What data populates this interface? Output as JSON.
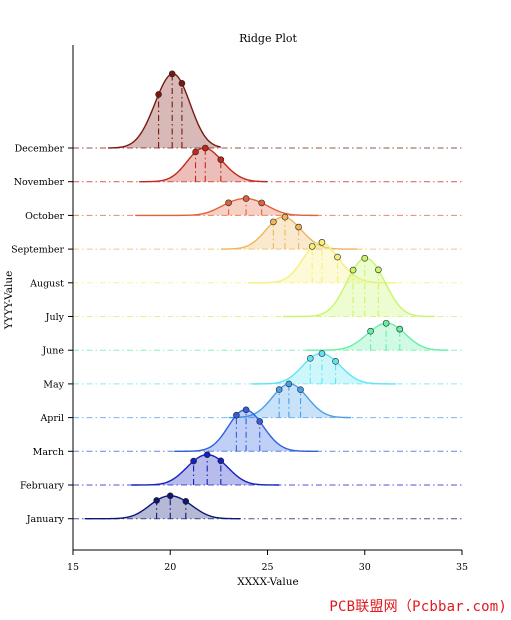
{
  "chart_data": {
    "type": "ridge",
    "title": "Ridge Plot",
    "xlabel": "XXXX-Value",
    "ylabel": "YYYY-Value",
    "xlim": [
      15,
      35
    ],
    "xticks": [
      15,
      20,
      25,
      30,
      35
    ],
    "categories": [
      "January",
      "February",
      "March",
      "April",
      "May",
      "June",
      "July",
      "August",
      "September",
      "October",
      "November",
      "December"
    ],
    "series": [
      {
        "category": "January",
        "color": "#0b1775",
        "points": [
          {
            "x": 19.3,
            "y": 0.6
          },
          {
            "x": 20.0,
            "y": 0.68
          },
          {
            "x": 20.8,
            "y": 0.6
          }
        ],
        "range": [
          15.6,
          23.6
        ]
      },
      {
        "category": "February",
        "color": "#1420c0",
        "points": [
          {
            "x": 21.2,
            "y": 0.88
          },
          {
            "x": 21.9,
            "y": 0.9
          },
          {
            "x": 22.6,
            "y": 0.9
          }
        ],
        "range": [
          18.0,
          25.6
        ]
      },
      {
        "category": "March",
        "color": "#2f5fe0",
        "points": [
          {
            "x": 23.4,
            "y": 0.95
          },
          {
            "x": 23.9,
            "y": 1.23
          },
          {
            "x": 24.6,
            "y": 0.7
          }
        ],
        "range": [
          20.2,
          27.6
        ]
      },
      {
        "category": "April",
        "color": "#4a9fea",
        "points": [
          {
            "x": 25.6,
            "y": 0.8
          },
          {
            "x": 26.1,
            "y": 1.0
          },
          {
            "x": 26.7,
            "y": 0.9
          }
        ],
        "range": [
          23.0,
          29.3
        ]
      },
      {
        "category": "May",
        "color": "#5ee4f2",
        "points": [
          {
            "x": 27.2,
            "y": 0.86
          },
          {
            "x": 27.8,
            "y": 0.9
          },
          {
            "x": 28.5,
            "y": 0.7
          }
        ],
        "range": [
          24.2,
          31.6
        ]
      },
      {
        "category": "June",
        "color": "#66f0a6",
        "points": [
          {
            "x": 30.3,
            "y": 0.45
          },
          {
            "x": 31.1,
            "y": 0.8
          },
          {
            "x": 31.8,
            "y": 0.5
          }
        ],
        "range": [
          27.0,
          34.3
        ]
      },
      {
        "category": "July",
        "color": "#c8f56a",
        "points": [
          {
            "x": 29.4,
            "y": 1.4
          },
          {
            "x": 30.0,
            "y": 1.73
          },
          {
            "x": 30.7,
            "y": 1.6
          }
        ],
        "range": [
          25.8,
          33.6
        ]
      },
      {
        "category": "August",
        "color": "#f6f07a",
        "points": [
          {
            "x": 27.3,
            "y": 1.05
          },
          {
            "x": 27.8,
            "y": 1.2
          },
          {
            "x": 28.6,
            "y": 0.6
          }
        ],
        "range": [
          24.0,
          31.6
        ]
      },
      {
        "category": "September",
        "color": "#f0b55a",
        "points": [
          {
            "x": 25.3,
            "y": 0.65
          },
          {
            "x": 25.9,
            "y": 0.95
          },
          {
            "x": 26.6,
            "y": 0.4
          }
        ],
        "range": [
          22.6,
          29.6
        ]
      },
      {
        "category": "October",
        "color": "#e0623a",
        "points": [
          {
            "x": 23.0,
            "y": 0.4
          },
          {
            "x": 23.9,
            "y": 0.5
          },
          {
            "x": 24.7,
            "y": 0.35
          }
        ],
        "range": [
          18.2,
          27.6
        ]
      },
      {
        "category": "November",
        "color": "#c42818",
        "points": [
          {
            "x": 21.3,
            "y": 0.75
          },
          {
            "x": 21.8,
            "y": 1.0
          },
          {
            "x": 22.6,
            "y": 0.5
          }
        ],
        "range": [
          18.4,
          25.0
        ]
      },
      {
        "category": "December",
        "color": "#7a1810",
        "points": [
          {
            "x": 19.4,
            "y": 1.3
          },
          {
            "x": 20.1,
            "y": 2.2
          },
          {
            "x": 20.6,
            "y": 1.75
          }
        ],
        "range": [
          16.8,
          22.6
        ]
      }
    ]
  },
  "watermark": "PCB联盟网（Pcbbar.com)"
}
